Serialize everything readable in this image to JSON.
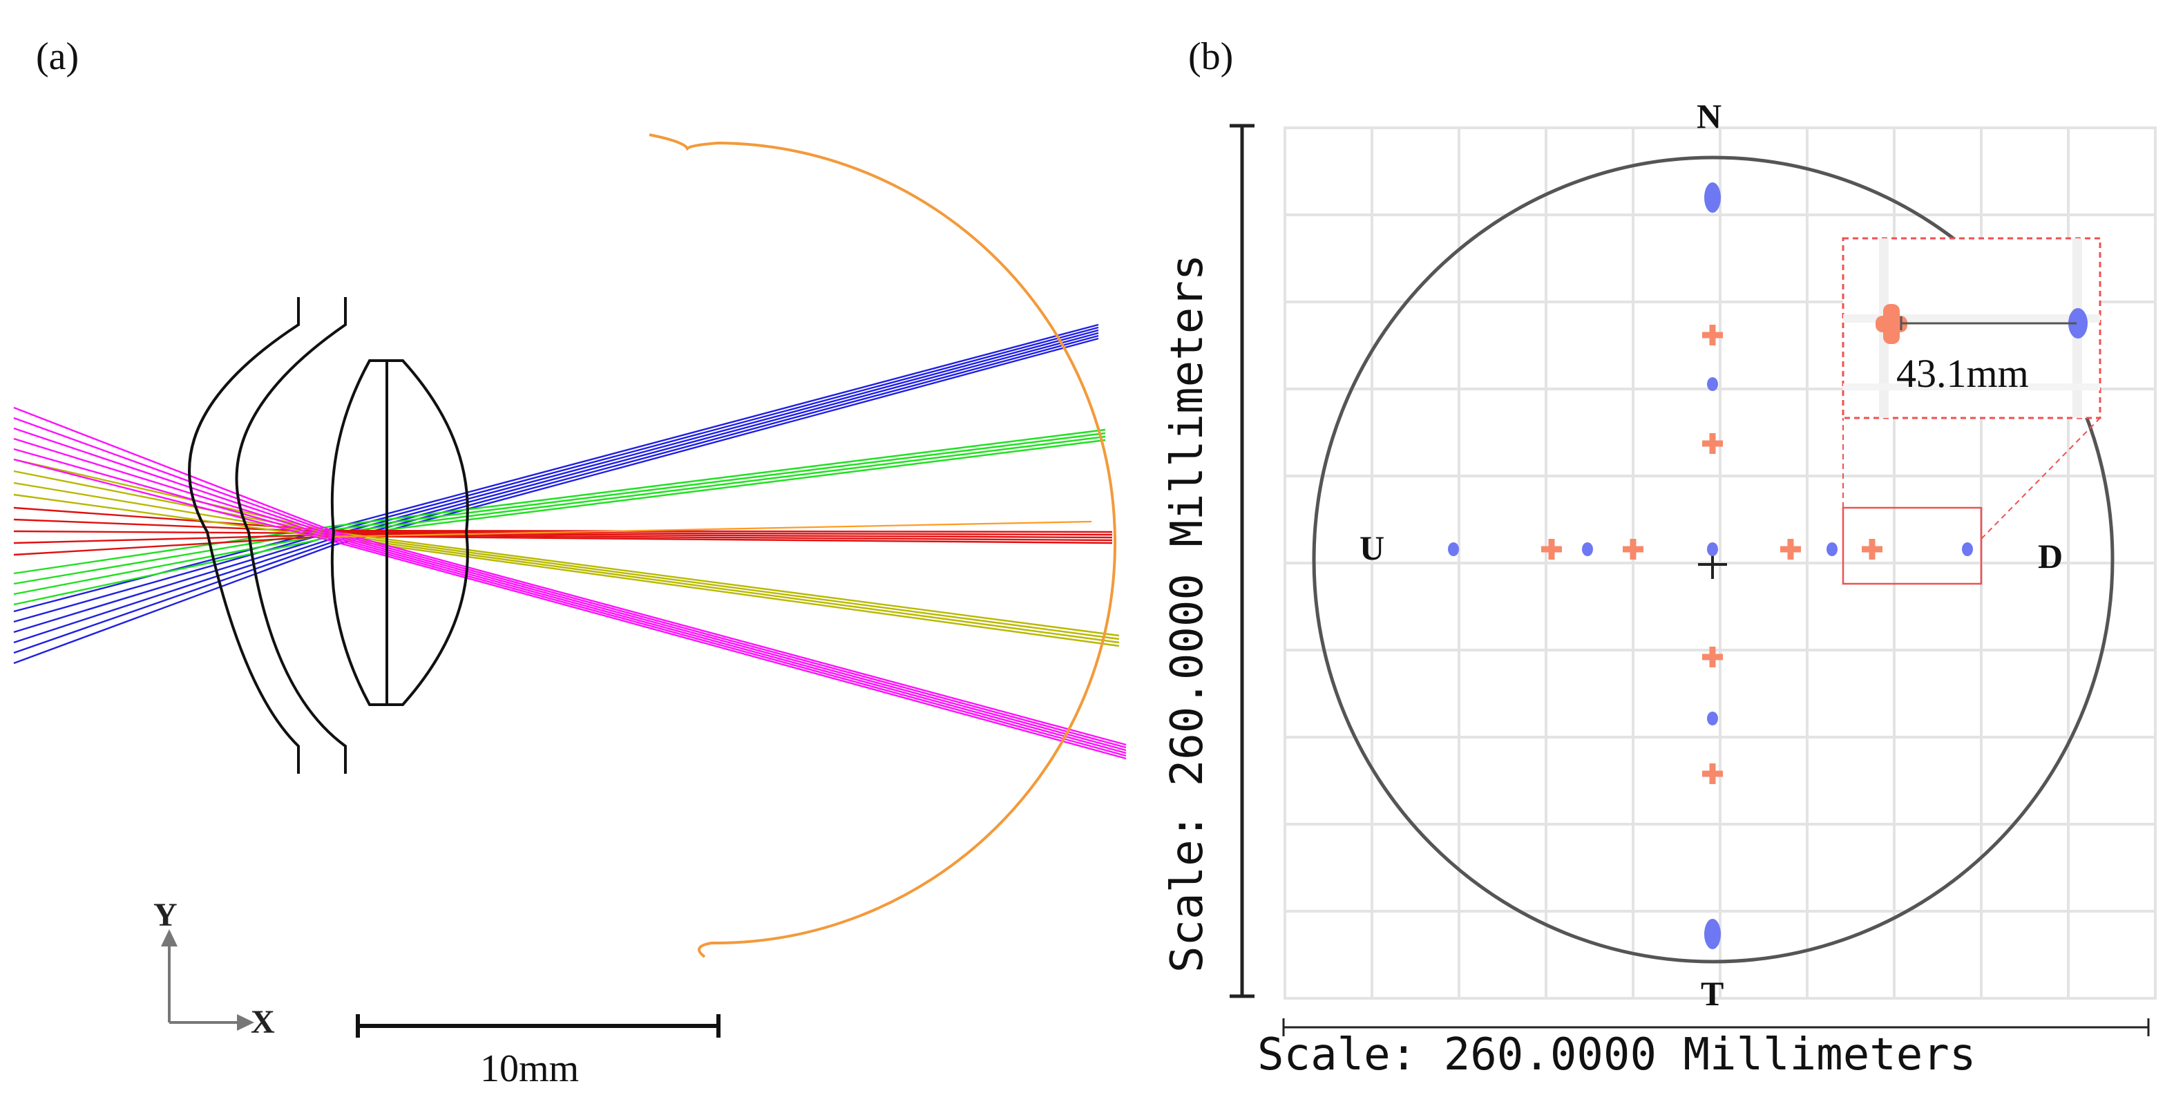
{
  "panel_a": {
    "label": "(a)",
    "axis_y_label": "Y",
    "axis_x_label": "X",
    "scale_bar_label": "10mm",
    "colors": {
      "lens": "#000000",
      "retina": "#f39a3a",
      "ray_blue": "#2020e0",
      "ray_green": "#20e020",
      "ray_red": "#e01010",
      "ray_yellow": "#b8b800",
      "ray_magenta": "#ff10ff",
      "ray_orange": "#ff9a20"
    }
  },
  "panel_b": {
    "label": "(b)",
    "label_n": "N",
    "label_t": "T",
    "label_u": "U",
    "label_d": "D",
    "scale_vertical": "Scale: 260.0000 Millimeters",
    "scale_horizontal": "Scale: 260.0000 Millimeters",
    "inset_distance": "43.1mm",
    "colors": {
      "orange_marker": "#f7896a",
      "blue_marker": "#6e78f2",
      "inset_border": "#f05050",
      "grid": "#e3e3e3",
      "circle": "#555555"
    }
  }
}
